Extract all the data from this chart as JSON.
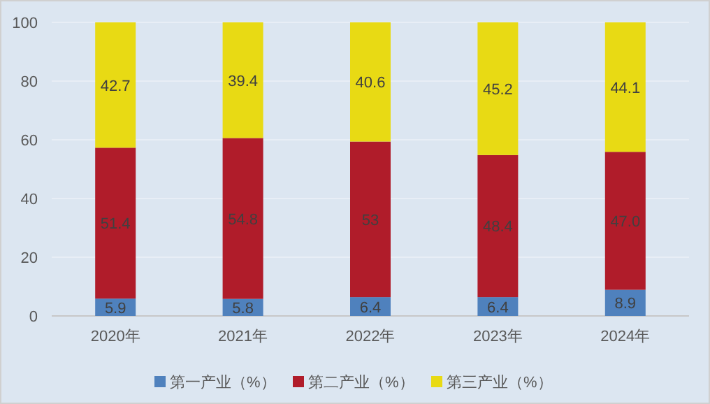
{
  "chart_data": {
    "type": "bar",
    "stacked": true,
    "categories": [
      "2020年",
      "2021年",
      "2022年",
      "2023年",
      "2024年"
    ],
    "series": [
      {
        "name": "第一产业（%）",
        "color": "#4f81bd",
        "values": [
          5.9,
          5.8,
          6.4,
          6.4,
          8.9
        ],
        "value_labels": [
          "5.9",
          "5.8",
          "6.4",
          "6.4",
          "8.9"
        ]
      },
      {
        "name": "第二产业（%）",
        "color": "#b01c2a",
        "values": [
          51.4,
          54.8,
          53,
          48.4,
          47.0
        ],
        "value_labels": [
          "51.4",
          "54.8",
          "53",
          "48.4",
          "47.0"
        ]
      },
      {
        "name": "第三产业（%）",
        "color": "#e8da14",
        "values": [
          42.7,
          39.4,
          40.6,
          45.2,
          44.1
        ],
        "value_labels": [
          "42.7",
          "39.4",
          "40.6",
          "45.2",
          "44.1"
        ]
      }
    ],
    "ylim": [
      0,
      100
    ],
    "yticks": [
      0,
      20,
      40,
      60,
      80,
      100
    ],
    "grid": "y",
    "legend": "bottom"
  }
}
